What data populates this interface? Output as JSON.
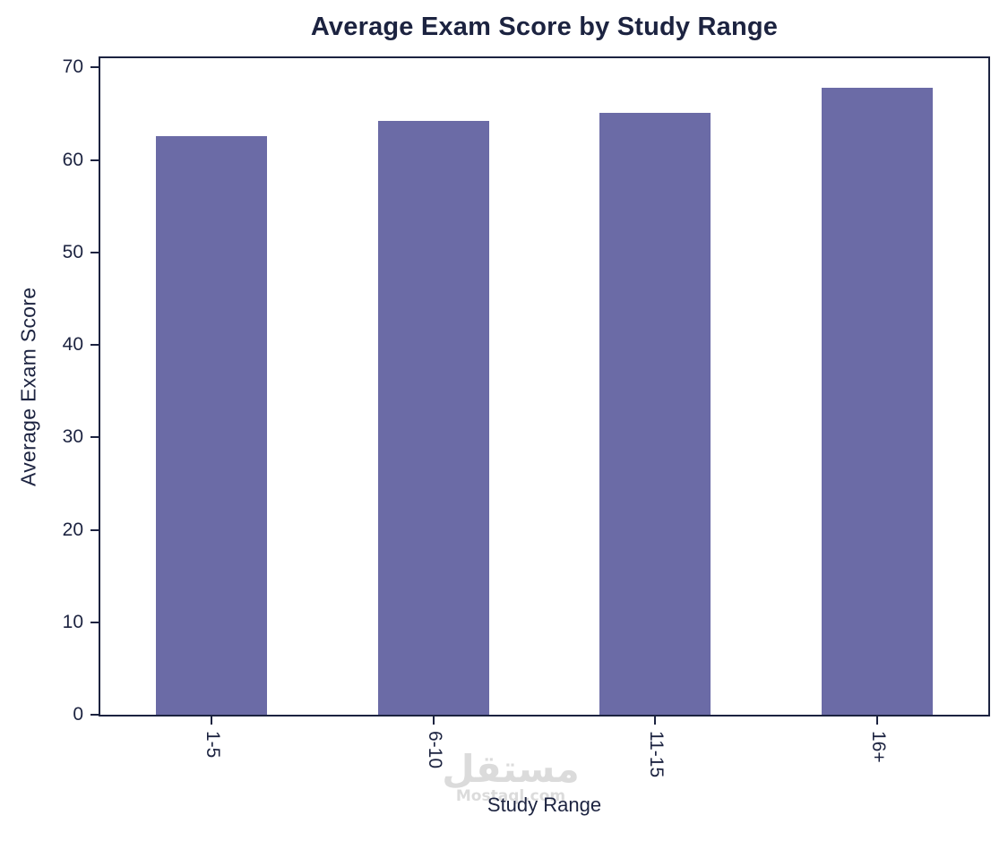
{
  "chart_data": {
    "type": "bar",
    "title": "Average Exam Score by Study Range",
    "xlabel": "Study Range",
    "ylabel": "Average Exam Score",
    "categories": [
      "1-5",
      "6-10",
      "11-15",
      "16+"
    ],
    "values": [
      62.6,
      64.2,
      65.1,
      67.8
    ],
    "ylim": [
      0,
      71
    ],
    "yticks": [
      0,
      10,
      20,
      30,
      40,
      50,
      60,
      70
    ],
    "grid": false,
    "legend": "none",
    "bar_color": "#6b6ba6",
    "text_color": "#1c2340",
    "x_tick_rotation": 90
  },
  "watermark": {
    "arabic_text": "مستقل",
    "latin_text": "Mostaql.com",
    "color": "#bfbfbf"
  }
}
